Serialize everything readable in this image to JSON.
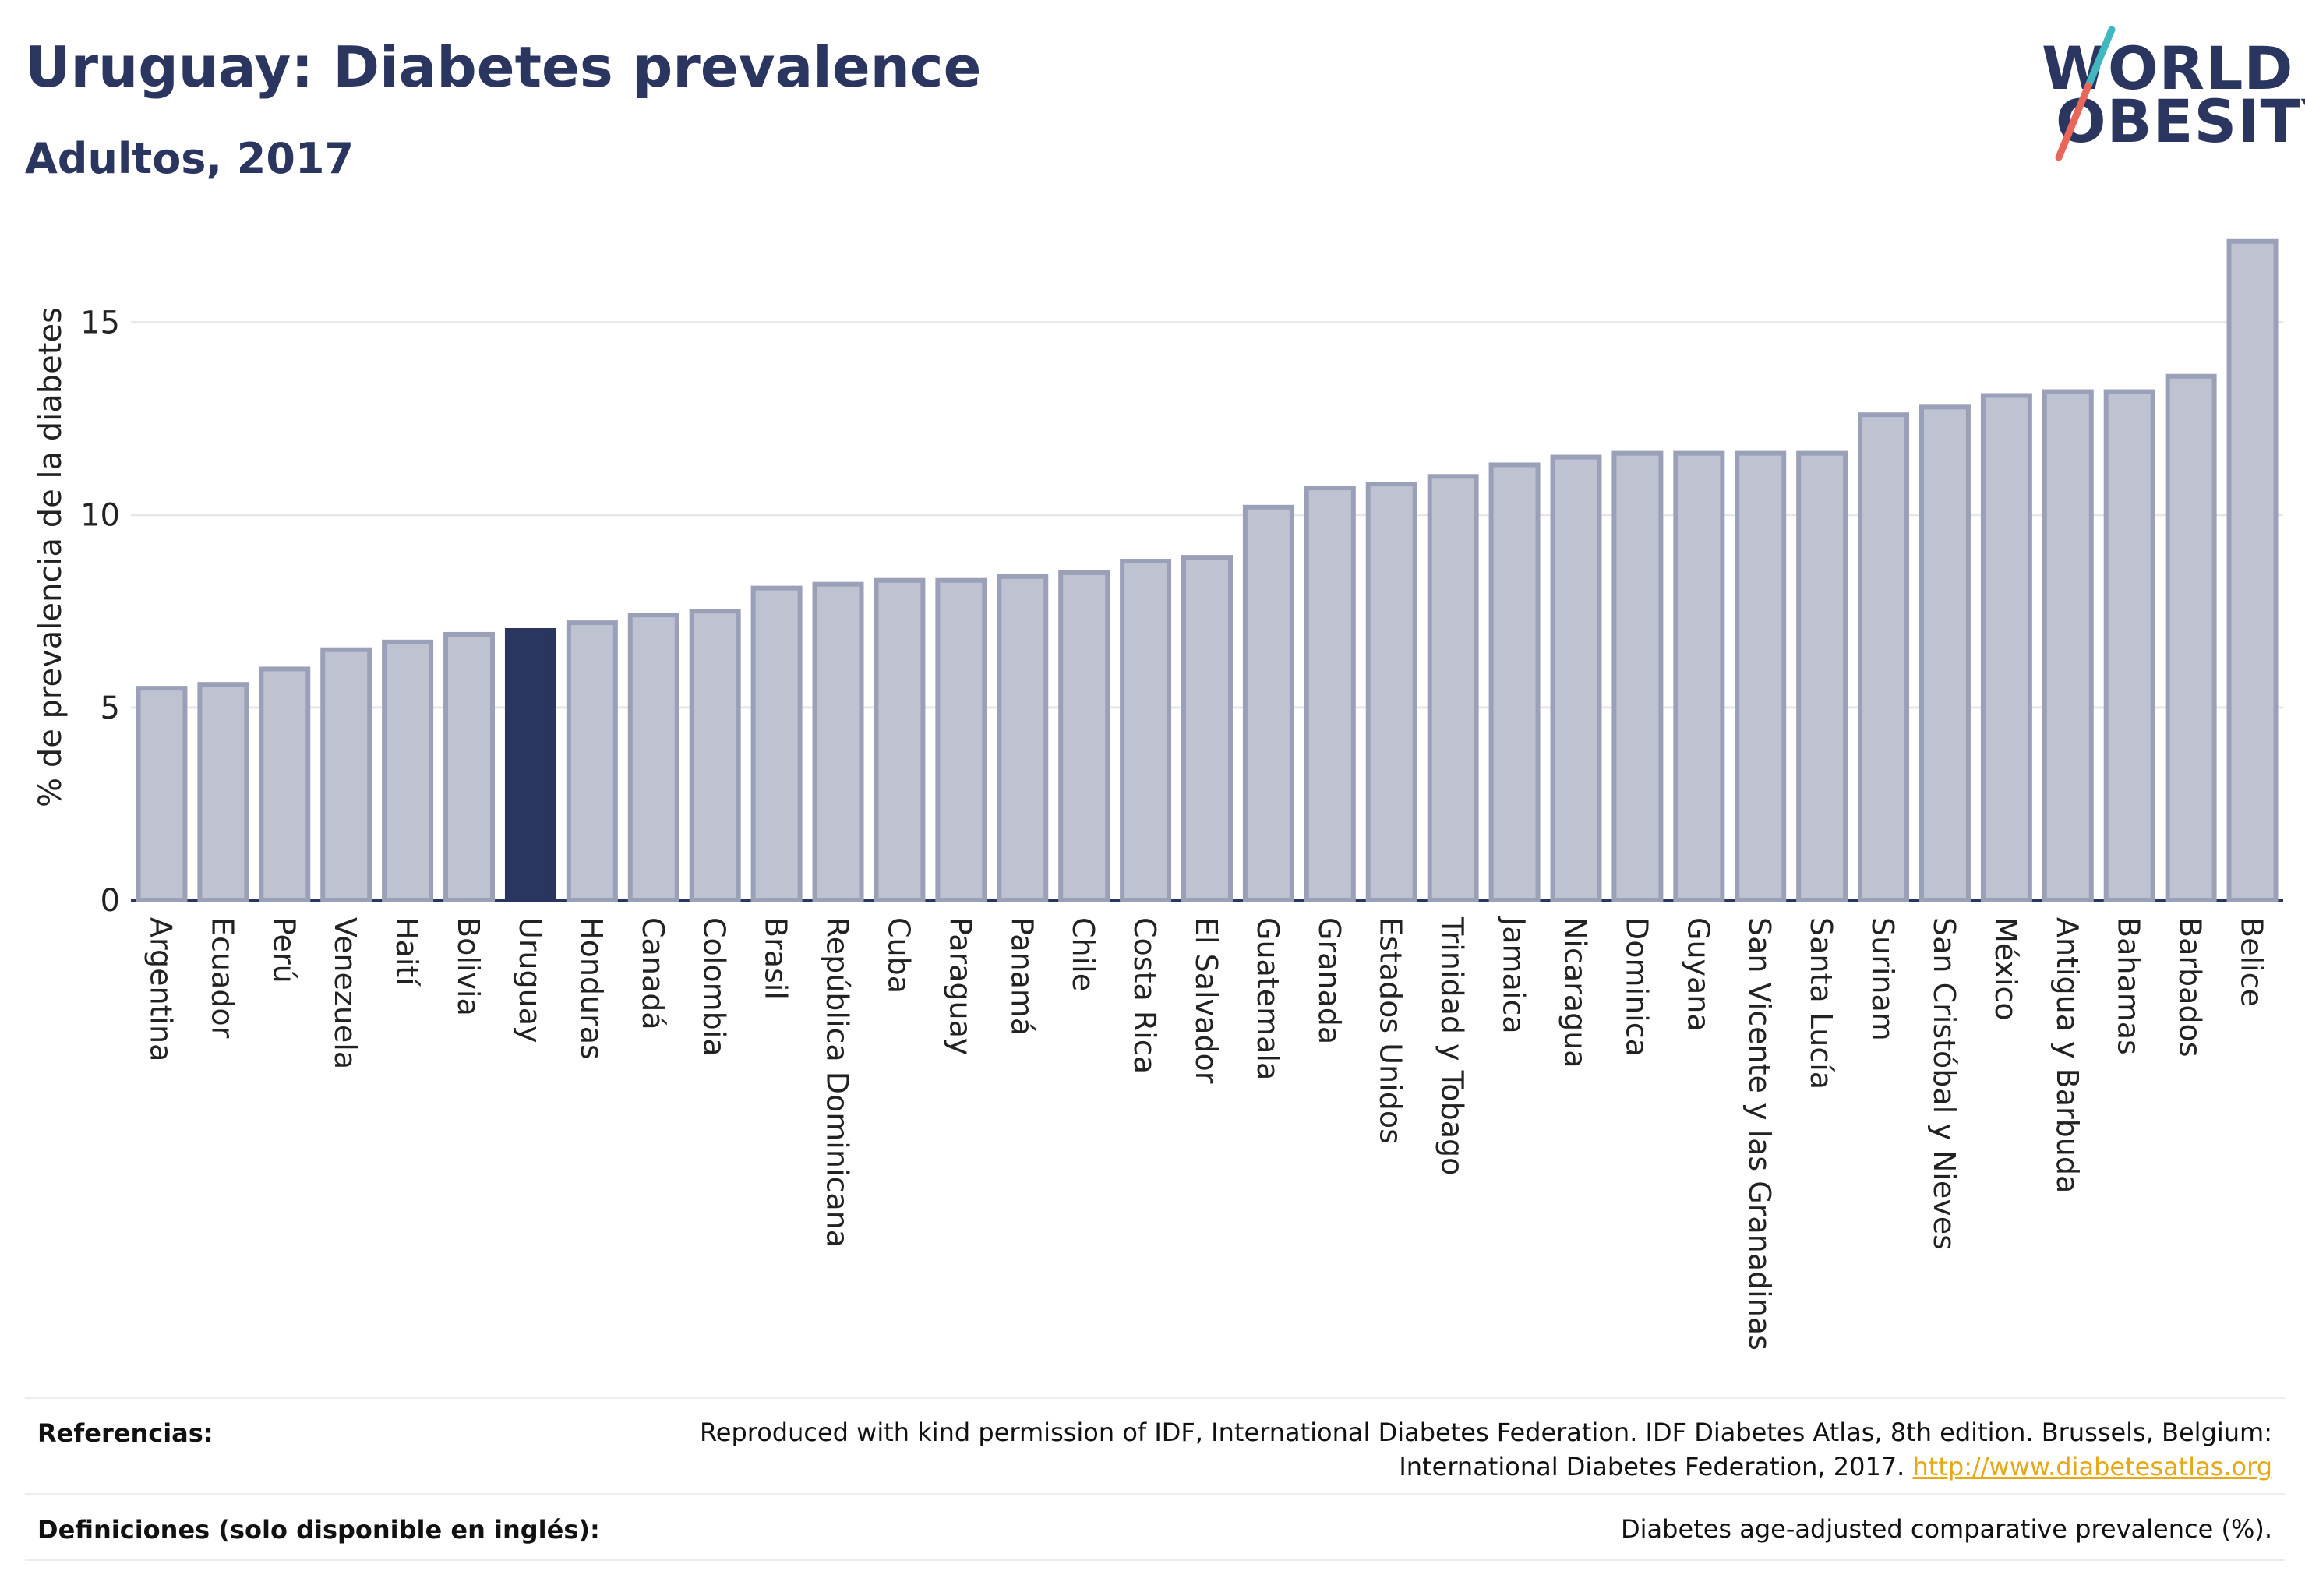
{
  "header": {
    "title": "Uruguay: Diabetes prevalence",
    "subtitle": "Adultos, 2017"
  },
  "logo": {
    "line1": "WORLD",
    "line2": "OBESITY",
    "colors": [
      "#2a3560",
      "#3fb8c0",
      "#e8675a"
    ]
  },
  "footer": {
    "ref_label": "Referencias:",
    "ref_text_1": "Reproduced with kind permission of IDF, International Diabetes Federation. IDF Diabetes Atlas, 8th edition. Brussels, Belgium:",
    "ref_text_2": "International Diabetes Federation, 2017.",
    "ref_link": "http://www.diabetesatlas.org",
    "def_label": "Definiciones (solo disponible en inglés):",
    "def_text": "Diabetes age-adjusted comparative prevalence (%)."
  },
  "colors": {
    "bar": "#bfc2d0",
    "bar_border": "#9aa0b8",
    "highlight": "#2a3560",
    "grid": "#e6e6e6",
    "axis": "#2a3560"
  },
  "chart_data": {
    "type": "bar",
    "ylabel": "% de prevalencia de la diabetes",
    "ylim": [
      0,
      17.5
    ],
    "yticks": [
      0,
      5,
      10,
      15
    ],
    "grid": true,
    "highlight": "Uruguay",
    "categories": [
      "Argentina",
      "Ecuador",
      "Perú",
      "Venezuela",
      "Haití",
      "Bolivia",
      "Uruguay",
      "Honduras",
      "Canadá",
      "Colombia",
      "Brasil",
      "República Dominicana",
      "Cuba",
      "Paraguay",
      "Panamá",
      "Chile",
      "Costa Rica",
      "El Salvador",
      "Guatemala",
      "Granada",
      "Estados Unidos",
      "Trinidad y Tobago",
      "Jamaica",
      "Nicaragua",
      "Dominica",
      "Guyana",
      "San Vicente y las Granadinas",
      "Santa Lucía",
      "Surinam",
      "San Cristóbal y Nieves",
      "México",
      "Antigua y Barbuda",
      "Bahamas",
      "Barbados",
      "Belice"
    ],
    "values": [
      5.5,
      5.6,
      6.0,
      6.5,
      6.7,
      6.9,
      7.0,
      7.2,
      7.4,
      7.5,
      8.1,
      8.2,
      8.3,
      8.3,
      8.4,
      8.5,
      8.8,
      8.9,
      10.2,
      10.7,
      10.8,
      11.0,
      11.3,
      11.5,
      11.6,
      11.6,
      11.6,
      11.6,
      12.6,
      12.8,
      13.1,
      13.2,
      13.2,
      13.6,
      17.1
    ]
  }
}
